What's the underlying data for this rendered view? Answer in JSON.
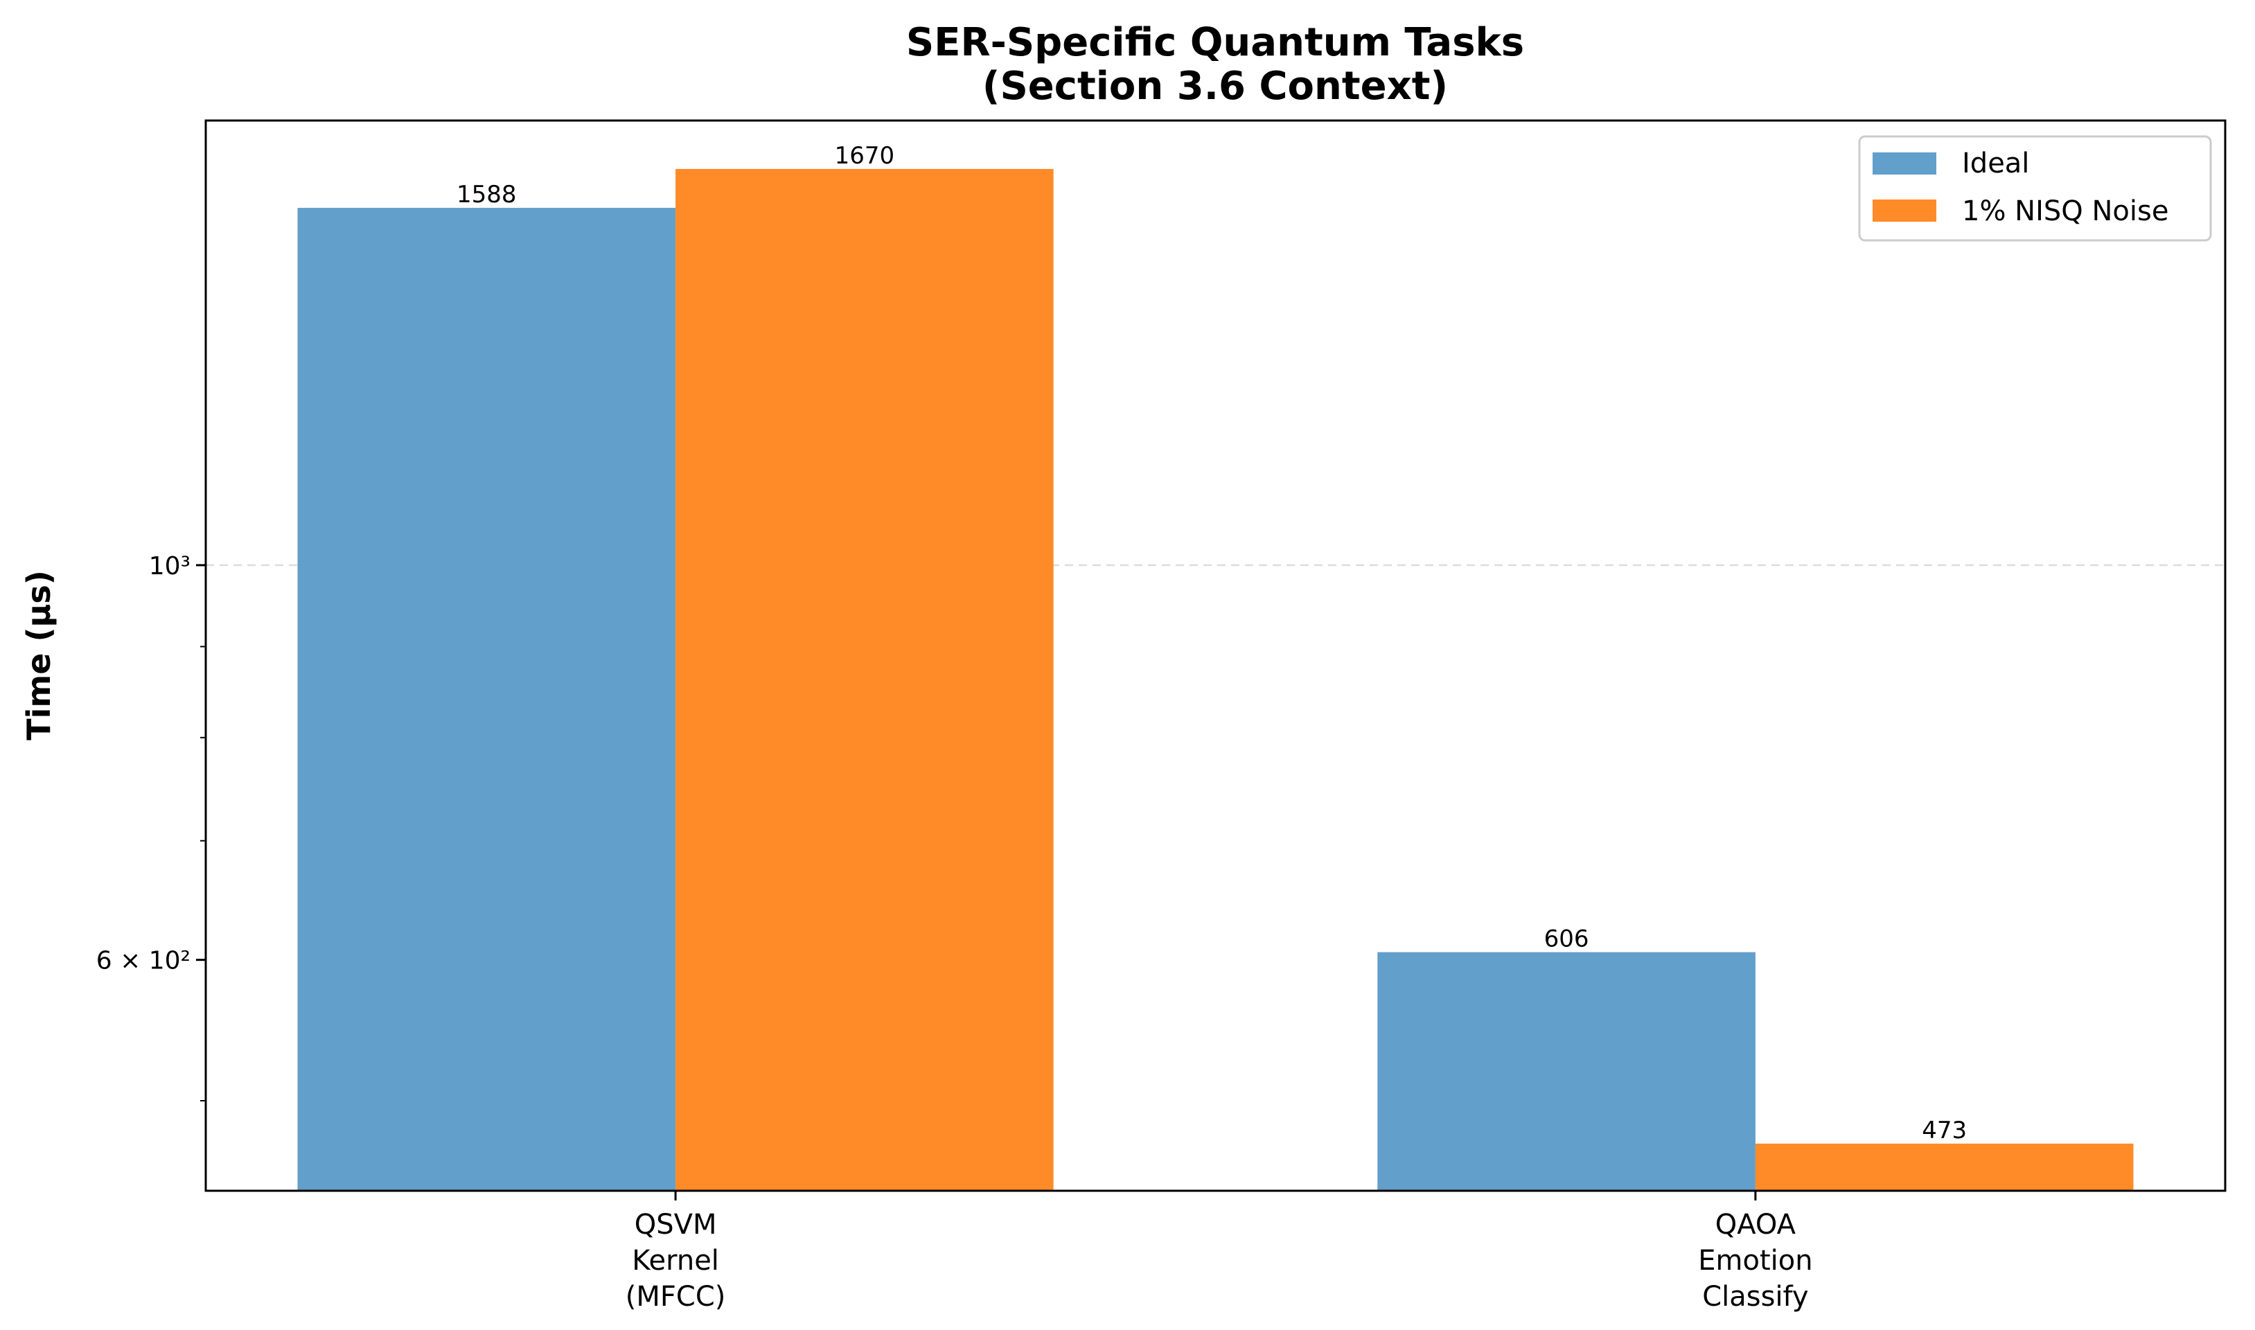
{
  "chart_data": {
    "type": "bar",
    "title": "SER-Specific Quantum Tasks\n(Section 3.6 Context)",
    "title_lines": [
      "SER-Specific Quantum Tasks",
      "(Section 3.6 Context)"
    ],
    "xlabel": "",
    "ylabel": "Time (µs)",
    "yscale": "log",
    "ylim": [
      445,
      1778
    ],
    "yticks": [
      {
        "value": 1000,
        "label": "10³"
      },
      {
        "value": 600,
        "label": "6 × 10²"
      }
    ],
    "minor_yticks": [
      500,
      700,
      800,
      900
    ],
    "grid": "y major dashed",
    "legend_position": "top-right",
    "categories": [
      [
        "QSVM",
        "Kernel",
        "(MFCC)"
      ],
      [
        "QAOA",
        "Emotion",
        "Classify"
      ]
    ],
    "series": [
      {
        "name": "Ideal",
        "color": "#629fca",
        "values": [
          1588,
          606
        ],
        "labels": [
          "1588",
          "606"
        ]
      },
      {
        "name": "1% NISQ Noise",
        "color": "#fe8b28",
        "values": [
          1670,
          473
        ],
        "labels": [
          "1670",
          "473"
        ]
      }
    ]
  }
}
